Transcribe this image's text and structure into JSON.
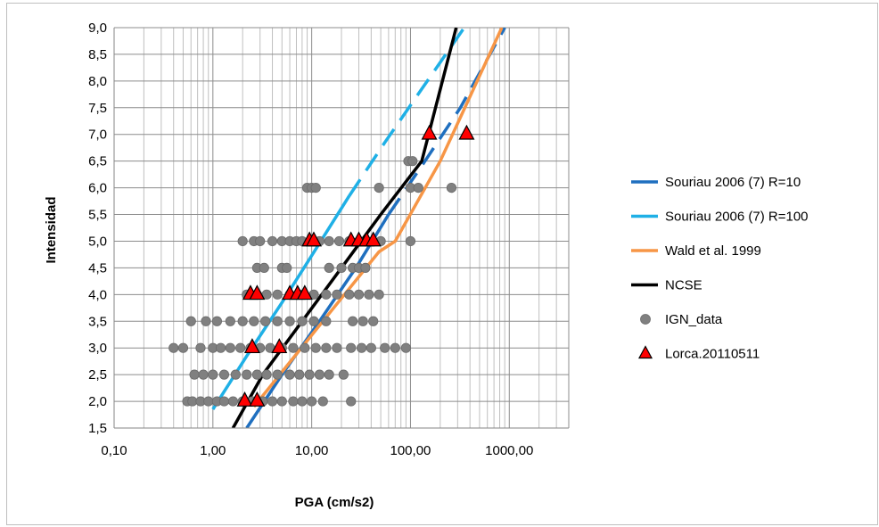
{
  "chart_data": {
    "type": "scatter",
    "xlabel": "PGA (cm/s2)",
    "ylabel": "Intensidad",
    "x_scale": "log",
    "xlim": [
      0.1,
      4000
    ],
    "ylim": [
      1.5,
      9.0
    ],
    "x_ticks": [
      0.1,
      1,
      10,
      100,
      1000
    ],
    "x_tick_labels": [
      "0,10",
      "1,00",
      "10,00",
      "100,00",
      "1000,00"
    ],
    "y_ticks": [
      1.5,
      2.0,
      2.5,
      3.0,
      3.5,
      4.0,
      4.5,
      5.0,
      5.5,
      6.0,
      6.5,
      7.0,
      7.5,
      8.0,
      8.5,
      9.0
    ],
    "y_tick_labels": [
      "1,5",
      "2,0",
      "2,5",
      "3,0",
      "3,5",
      "4,0",
      "4,5",
      "5,0",
      "5,5",
      "6,0",
      "6,5",
      "7,0",
      "7,5",
      "8,0",
      "8,5",
      "9,0"
    ],
    "grid": true,
    "legend_position": "right",
    "series": [
      {
        "name": "Souriau 2006 (7) R=10",
        "kind": "line",
        "style": "solid+dashed",
        "color": "#1F6FBF",
        "x": [
          2.2,
          5.0,
          12.0,
          28.0,
          60.0
        ],
        "y": [
          1.5,
          2.5,
          3.5,
          4.5,
          5.5
        ],
        "x_dashed": [
          60.0,
          140.0,
          320.0,
          900.0
        ],
        "y_dashed": [
          5.5,
          6.5,
          7.5,
          9.0
        ]
      },
      {
        "name": "Souriau 2006 (7) R=100",
        "kind": "line",
        "style": "solid+dashed",
        "color": "#1FB0E6",
        "x": [
          1.0,
          2.2,
          5.0,
          11.0,
          24.0
        ],
        "y": [
          1.85,
          2.85,
          3.85,
          4.85,
          5.85
        ],
        "x_dashed": [
          24.0,
          55.0,
          130.0,
          350.0
        ],
        "y_dashed": [
          5.85,
          6.85,
          7.85,
          9.0
        ]
      },
      {
        "name": "Wald et al. 1999",
        "kind": "line",
        "style": "solid",
        "color": "#F79646",
        "x": [
          2.6,
          48.0,
          70.0,
          200.0,
          840.0
        ],
        "y": [
          1.9,
          4.8,
          5.0,
          6.5,
          9.0
        ]
      },
      {
        "name": "NCSE",
        "kind": "line",
        "style": "solid",
        "color": "#000000",
        "x": [
          1.6,
          3.2,
          8.0,
          20.0,
          50.0,
          130.0,
          290.0
        ],
        "y": [
          1.5,
          2.5,
          3.5,
          4.5,
          5.5,
          6.5,
          9.0
        ]
      },
      {
        "name": "IGN_data",
        "kind": "scatter",
        "marker": "circle",
        "color": "#808080",
        "x": [
          0.55,
          0.62,
          0.75,
          0.9,
          1.1,
          1.3,
          1.6,
          2.0,
          2.5,
          3.2,
          4.0,
          5.0,
          6.5,
          8.0,
          10.0,
          13.0,
          25.0,
          0.65,
          0.8,
          1.0,
          1.3,
          1.7,
          2.2,
          2.8,
          3.5,
          4.5,
          6.0,
          7.5,
          9.5,
          12.0,
          15.0,
          21.0,
          0.4,
          0.5,
          0.75,
          1.0,
          1.2,
          1.5,
          1.9,
          2.4,
          3.0,
          3.8,
          5.0,
          6.5,
          8.5,
          11.0,
          14.0,
          18.0,
          25.0,
          32.0,
          40.0,
          55.0,
          70.0,
          90.0,
          0.6,
          0.85,
          1.1,
          1.5,
          2.0,
          2.6,
          3.4,
          4.5,
          6.0,
          8.0,
          10.5,
          14.0,
          26.0,
          33.0,
          42.0,
          2.2,
          2.8,
          3.5,
          4.5,
          6.0,
          8.0,
          10.5,
          14.0,
          18.0,
          24.0,
          30.0,
          38.0,
          48.0,
          2.8,
          3.3,
          5.0,
          5.6,
          15.0,
          20.0,
          26.0,
          30.0,
          35.0,
          2.0,
          2.6,
          3.0,
          4.0,
          5.0,
          6.0,
          7.0,
          8.0,
          10.0,
          12.0,
          15.0,
          19.0,
          24.0,
          30.0,
          50.0,
          100.0,
          9.0,
          10.0,
          11.0,
          48.0,
          100.0,
          120.0,
          260.0,
          95.0,
          105.0
        ],
        "y": [
          2.0,
          2.0,
          2.0,
          2.0,
          2.0,
          2.0,
          2.0,
          2.0,
          2.0,
          2.0,
          2.0,
          2.0,
          2.0,
          2.0,
          2.0,
          2.0,
          2.0,
          2.5,
          2.5,
          2.5,
          2.5,
          2.5,
          2.5,
          2.5,
          2.5,
          2.5,
          2.5,
          2.5,
          2.5,
          2.5,
          2.5,
          2.5,
          3.0,
          3.0,
          3.0,
          3.0,
          3.0,
          3.0,
          3.0,
          3.0,
          3.0,
          3.0,
          3.0,
          3.0,
          3.0,
          3.0,
          3.0,
          3.0,
          3.0,
          3.0,
          3.0,
          3.0,
          3.0,
          3.0,
          3.5,
          3.5,
          3.5,
          3.5,
          3.5,
          3.5,
          3.5,
          3.5,
          3.5,
          3.5,
          3.5,
          3.5,
          3.5,
          3.5,
          3.5,
          4.0,
          4.0,
          4.0,
          4.0,
          4.0,
          4.0,
          4.0,
          4.0,
          4.0,
          4.0,
          4.0,
          4.0,
          4.0,
          4.5,
          4.5,
          4.5,
          4.5,
          4.5,
          4.5,
          4.5,
          4.5,
          4.5,
          5.0,
          5.0,
          5.0,
          5.0,
          5.0,
          5.0,
          5.0,
          5.0,
          5.0,
          5.0,
          5.0,
          5.0,
          5.0,
          5.0,
          5.0,
          5.0,
          6.0,
          6.0,
          6.0,
          6.0,
          6.0,
          6.0,
          6.0,
          6.5,
          6.5
        ]
      },
      {
        "name": "Lorca.20110511",
        "kind": "scatter",
        "marker": "triangle",
        "color": "#FF0000",
        "x": [
          2.1,
          2.8,
          2.5,
          4.7,
          2.4,
          2.8,
          6.0,
          7.2,
          8.5,
          9.5,
          10.5,
          25.0,
          30.0,
          36.0,
          42.0,
          155.0,
          370.0
        ],
        "y": [
          2.0,
          2.0,
          3.0,
          3.0,
          4.0,
          4.0,
          4.0,
          4.0,
          4.0,
          5.0,
          5.0,
          5.0,
          5.0,
          5.0,
          5.0,
          7.0,
          7.0
        ]
      }
    ]
  }
}
